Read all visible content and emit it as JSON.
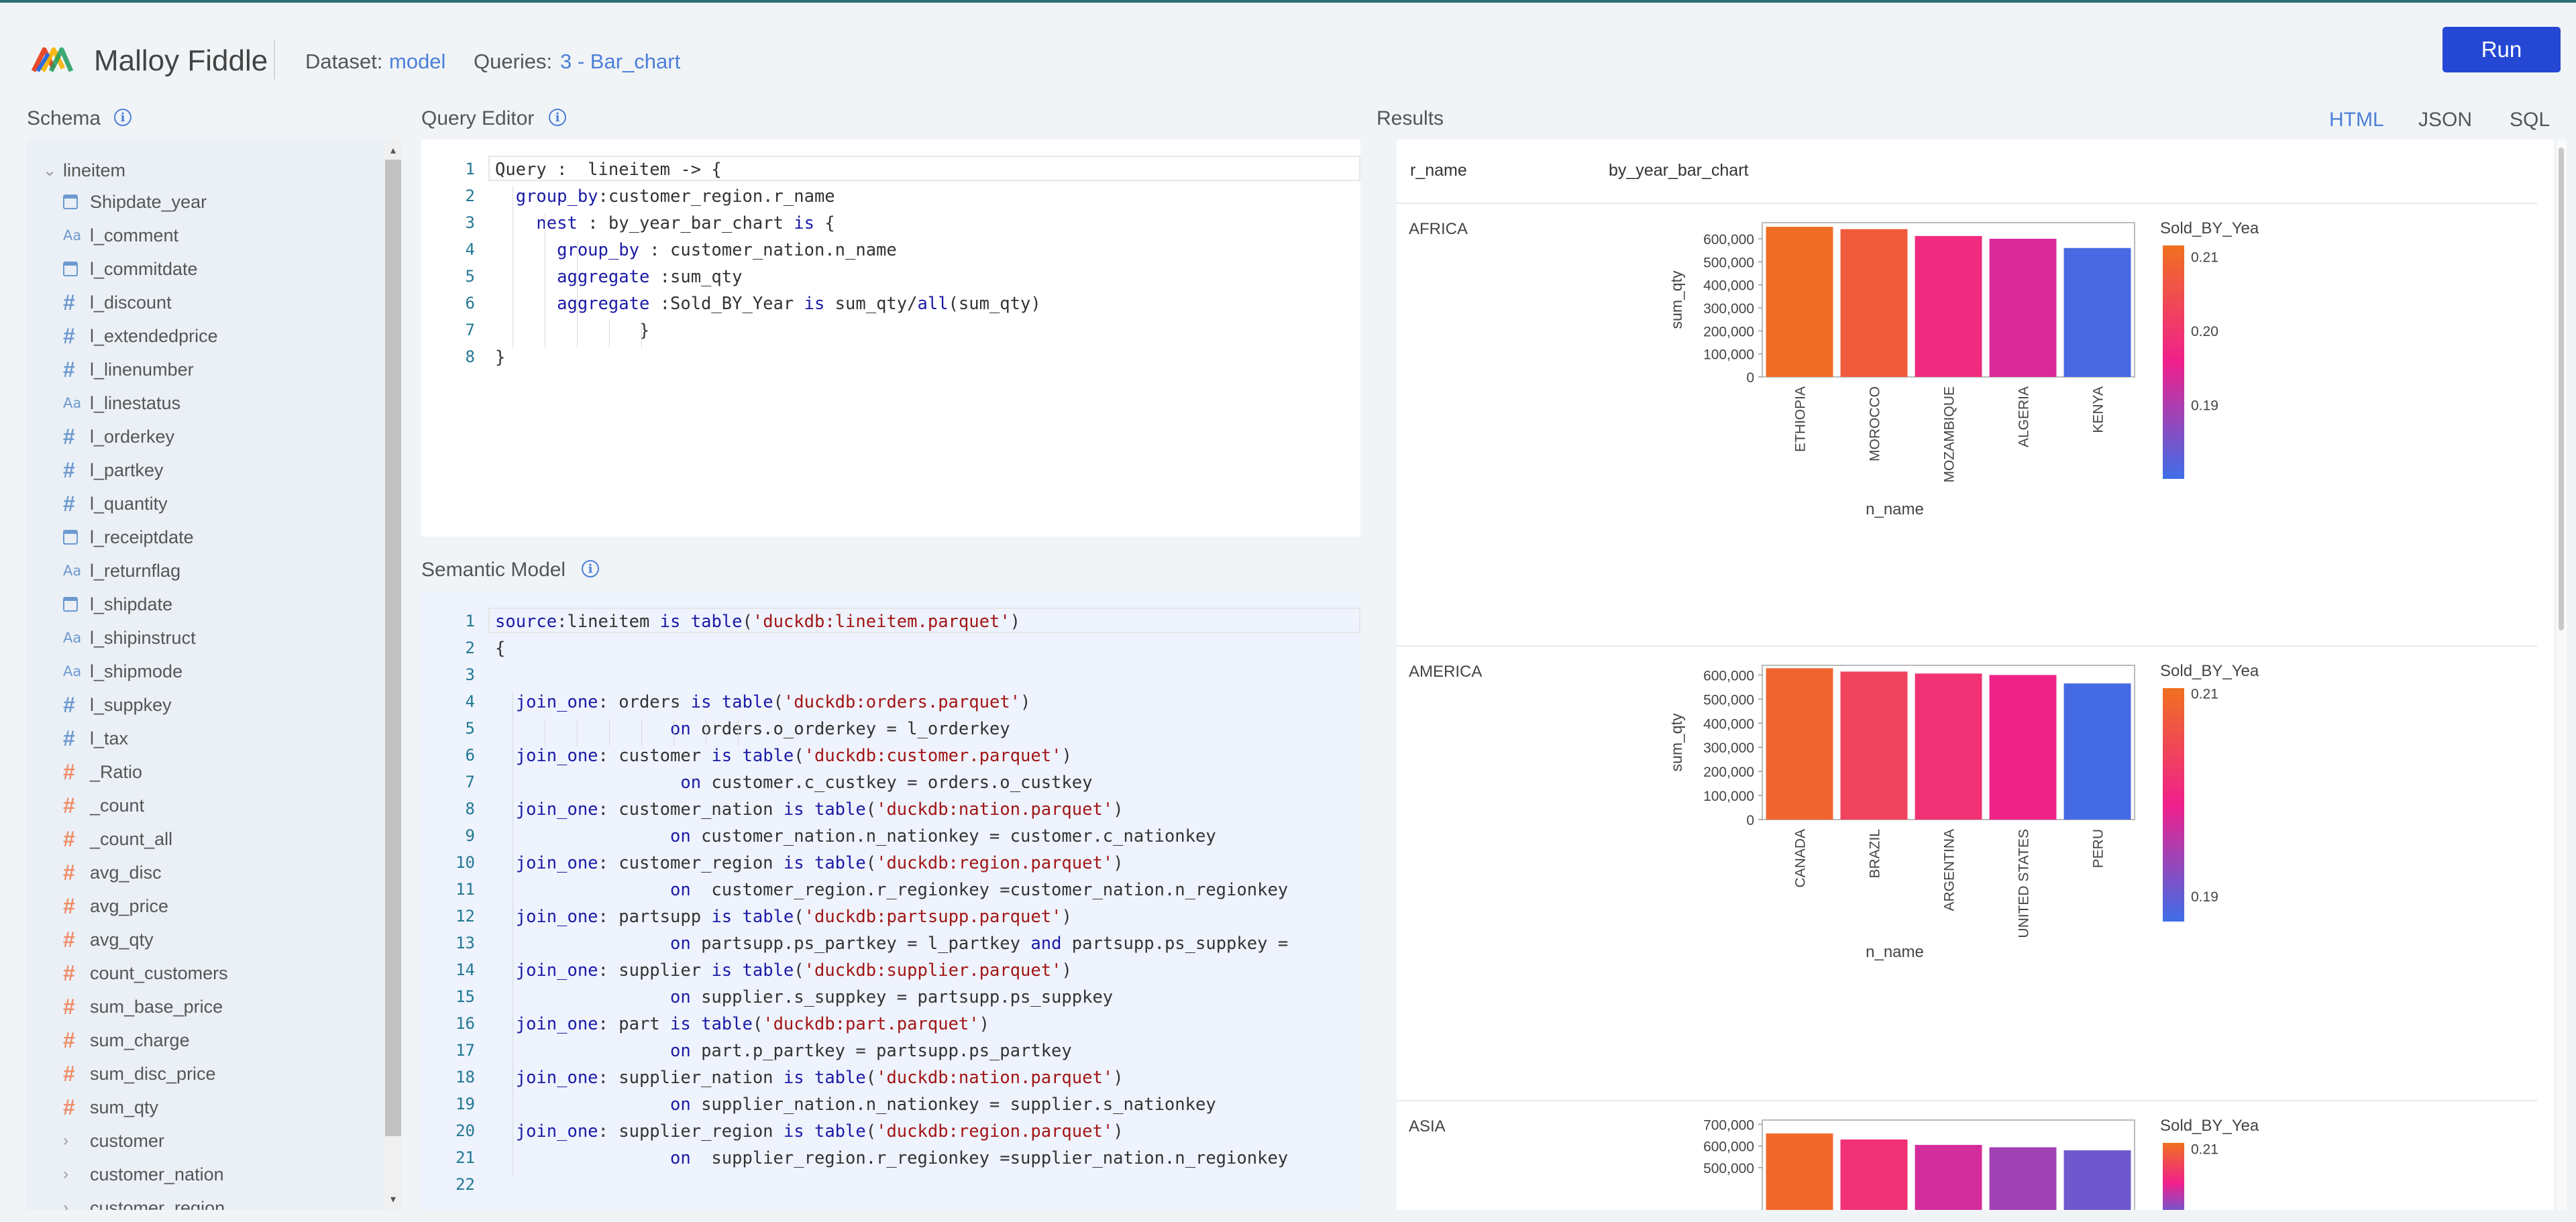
{
  "header": {
    "app_title": "Malloy Fiddle",
    "dataset_label": "Dataset:",
    "dataset_value": "model",
    "queries_label": "Queries:",
    "queries_value": "3 - Bar_chart",
    "run_label": "Run"
  },
  "schema": {
    "title": "Schema",
    "root": "lineitem",
    "fields": [
      {
        "name": "Shipdate_year",
        "type": "date"
      },
      {
        "name": "l_comment",
        "type": "string"
      },
      {
        "name": "l_commitdate",
        "type": "date"
      },
      {
        "name": "l_discount",
        "type": "number"
      },
      {
        "name": "l_extendedprice",
        "type": "number"
      },
      {
        "name": "l_linenumber",
        "type": "number"
      },
      {
        "name": "l_linestatus",
        "type": "string"
      },
      {
        "name": "l_orderkey",
        "type": "number"
      },
      {
        "name": "l_partkey",
        "type": "number"
      },
      {
        "name": "l_quantity",
        "type": "number"
      },
      {
        "name": "l_receiptdate",
        "type": "date"
      },
      {
        "name": "l_returnflag",
        "type": "string"
      },
      {
        "name": "l_shipdate",
        "type": "date"
      },
      {
        "name": "l_shipinstruct",
        "type": "string"
      },
      {
        "name": "l_shipmode",
        "type": "string"
      },
      {
        "name": "l_suppkey",
        "type": "number"
      },
      {
        "name": "l_tax",
        "type": "number"
      },
      {
        "name": "_Ratio",
        "type": "aggregate"
      },
      {
        "name": "_count",
        "type": "aggregate"
      },
      {
        "name": "_count_all",
        "type": "aggregate"
      },
      {
        "name": "avg_disc",
        "type": "aggregate"
      },
      {
        "name": "avg_price",
        "type": "aggregate"
      },
      {
        "name": "avg_qty",
        "type": "aggregate"
      },
      {
        "name": "count_customers",
        "type": "aggregate"
      },
      {
        "name": "sum_base_price",
        "type": "aggregate"
      },
      {
        "name": "sum_charge",
        "type": "aggregate"
      },
      {
        "name": "sum_disc_price",
        "type": "aggregate"
      },
      {
        "name": "sum_qty",
        "type": "aggregate"
      },
      {
        "name": "customer",
        "type": "join"
      },
      {
        "name": "customer_nation",
        "type": "join"
      },
      {
        "name": "customer_region",
        "type": "join"
      }
    ]
  },
  "query_editor": {
    "title": "Query Editor",
    "lines": [
      [
        {
          "t": "Query :  lineitem -> {"
        }
      ],
      [
        {
          "t": "  "
        },
        {
          "t": "group_by",
          "k": 1
        },
        {
          "t": ":customer_region.r_name"
        }
      ],
      [
        {
          "t": "    "
        },
        {
          "t": "nest",
          "k": 1
        },
        {
          "t": " : by_year_bar_chart "
        },
        {
          "t": "is",
          "k": 1
        },
        {
          "t": " {"
        }
      ],
      [
        {
          "t": "      "
        },
        {
          "t": "group_by",
          "k": 1
        },
        {
          "t": " : customer_nation.n_name"
        }
      ],
      [
        {
          "t": "      "
        },
        {
          "t": "aggregate",
          "k": 1
        },
        {
          "t": " :sum_qty"
        }
      ],
      [
        {
          "t": "      "
        },
        {
          "t": "aggregate",
          "k": 1
        },
        {
          "t": " :Sold_BY_Year "
        },
        {
          "t": "is",
          "k": 1
        },
        {
          "t": " sum_qty/"
        },
        {
          "t": "all",
          "k": 1
        },
        {
          "t": "(sum_qty)"
        }
      ],
      [
        {
          "t": "              }"
        }
      ],
      [
        {
          "t": "}"
        }
      ]
    ]
  },
  "semantic_model": {
    "title": "Semantic Model",
    "lines": [
      [
        {
          "t": "source",
          "k": 1
        },
        {
          "t": ":lineitem "
        },
        {
          "t": "is",
          "k": 1
        },
        {
          "t": " "
        },
        {
          "t": "table",
          "k": 1
        },
        {
          "t": "("
        },
        {
          "t": "'duckdb:lineitem.parquet'",
          "s": 1
        },
        {
          "t": ")"
        }
      ],
      [
        {
          "t": "{"
        }
      ],
      [
        {
          "t": ""
        }
      ],
      [
        {
          "t": "  "
        },
        {
          "t": "join_one",
          "k": 1
        },
        {
          "t": ": orders "
        },
        {
          "t": "is",
          "k": 1
        },
        {
          "t": " "
        },
        {
          "t": "table",
          "k": 1
        },
        {
          "t": "("
        },
        {
          "t": "'duckdb:orders.parquet'",
          "s": 1
        },
        {
          "t": ")"
        }
      ],
      [
        {
          "t": "                 "
        },
        {
          "t": "on",
          "k": 1
        },
        {
          "t": " orders.o_orderkey = l_orderkey"
        }
      ],
      [
        {
          "t": "  "
        },
        {
          "t": "join_one",
          "k": 1
        },
        {
          "t": ": customer "
        },
        {
          "t": "is",
          "k": 1
        },
        {
          "t": " "
        },
        {
          "t": "table",
          "k": 1
        },
        {
          "t": "("
        },
        {
          "t": "'duckdb:customer.parquet'",
          "s": 1
        },
        {
          "t": ")"
        }
      ],
      [
        {
          "t": "                  "
        },
        {
          "t": "on",
          "k": 1
        },
        {
          "t": " customer.c_custkey = orders.o_custkey"
        }
      ],
      [
        {
          "t": "  "
        },
        {
          "t": "join_one",
          "k": 1
        },
        {
          "t": ": customer_nation "
        },
        {
          "t": "is",
          "k": 1
        },
        {
          "t": " "
        },
        {
          "t": "table",
          "k": 1
        },
        {
          "t": "("
        },
        {
          "t": "'duckdb:nation.parquet'",
          "s": 1
        },
        {
          "t": ")"
        }
      ],
      [
        {
          "t": "                 "
        },
        {
          "t": "on",
          "k": 1
        },
        {
          "t": " customer_nation.n_nationkey = customer.c_nationkey"
        }
      ],
      [
        {
          "t": "  "
        },
        {
          "t": "join_one",
          "k": 1
        },
        {
          "t": ": customer_region "
        },
        {
          "t": "is",
          "k": 1
        },
        {
          "t": " "
        },
        {
          "t": "table",
          "k": 1
        },
        {
          "t": "("
        },
        {
          "t": "'duckdb:region.parquet'",
          "s": 1
        },
        {
          "t": ")"
        }
      ],
      [
        {
          "t": "                 "
        },
        {
          "t": "on",
          "k": 1
        },
        {
          "t": "  customer_region.r_regionkey =customer_nation.n_regionkey"
        }
      ],
      [
        {
          "t": "  "
        },
        {
          "t": "join_one",
          "k": 1
        },
        {
          "t": ": partsupp "
        },
        {
          "t": "is",
          "k": 1
        },
        {
          "t": " "
        },
        {
          "t": "table",
          "k": 1
        },
        {
          "t": "("
        },
        {
          "t": "'duckdb:partsupp.parquet'",
          "s": 1
        },
        {
          "t": ")"
        }
      ],
      [
        {
          "t": "                 "
        },
        {
          "t": "on",
          "k": 1
        },
        {
          "t": " partsupp.ps_partkey = l_partkey "
        },
        {
          "t": "and",
          "k": 1
        },
        {
          "t": " partsupp.ps_suppkey ="
        }
      ],
      [
        {
          "t": "  "
        },
        {
          "t": "join_one",
          "k": 1
        },
        {
          "t": ": supplier "
        },
        {
          "t": "is",
          "k": 1
        },
        {
          "t": " "
        },
        {
          "t": "table",
          "k": 1
        },
        {
          "t": "("
        },
        {
          "t": "'duckdb:supplier.parquet'",
          "s": 1
        },
        {
          "t": ")"
        }
      ],
      [
        {
          "t": "                 "
        },
        {
          "t": "on",
          "k": 1
        },
        {
          "t": " supplier.s_suppkey = partsupp.ps_suppkey"
        }
      ],
      [
        {
          "t": "  "
        },
        {
          "t": "join_one",
          "k": 1
        },
        {
          "t": ": part "
        },
        {
          "t": "is",
          "k": 1
        },
        {
          "t": " "
        },
        {
          "t": "table",
          "k": 1
        },
        {
          "t": "("
        },
        {
          "t": "'duckdb:part.parquet'",
          "s": 1
        },
        {
          "t": ")"
        }
      ],
      [
        {
          "t": "                 "
        },
        {
          "t": "on",
          "k": 1
        },
        {
          "t": " part.p_partkey = partsupp.ps_partkey"
        }
      ],
      [
        {
          "t": "  "
        },
        {
          "t": "join_one",
          "k": 1
        },
        {
          "t": ": supplier_nation "
        },
        {
          "t": "is",
          "k": 1
        },
        {
          "t": " "
        },
        {
          "t": "table",
          "k": 1
        },
        {
          "t": "("
        },
        {
          "t": "'duckdb:nation.parquet'",
          "s": 1
        },
        {
          "t": ")"
        }
      ],
      [
        {
          "t": "                 "
        },
        {
          "t": "on",
          "k": 1
        },
        {
          "t": " supplier_nation.n_nationkey = supplier.s_nationkey"
        }
      ],
      [
        {
          "t": "  "
        },
        {
          "t": "join_one",
          "k": 1
        },
        {
          "t": ": supplier_region "
        },
        {
          "t": "is",
          "k": 1
        },
        {
          "t": " "
        },
        {
          "t": "table",
          "k": 1
        },
        {
          "t": "("
        },
        {
          "t": "'duckdb:region.parquet'",
          "s": 1
        },
        {
          "t": ")"
        }
      ],
      [
        {
          "t": "                 "
        },
        {
          "t": "on",
          "k": 1
        },
        {
          "t": "  supplier_region.r_regionkey =supplier_nation.n_regionkey"
        }
      ],
      [
        {
          "t": ""
        }
      ]
    ]
  },
  "results": {
    "title": "Results",
    "tabs": [
      "HTML",
      "JSON",
      "SQL"
    ],
    "active_tab": "HTML",
    "col_headers": [
      "r_name",
      "by_year_bar_chart"
    ]
  },
  "colors": {
    "accent": "#2447d4",
    "link": "#4c7fd8",
    "gradient_high": "#f07020",
    "gradient_mid": "#f0208c",
    "gradient_low": "#3d6ee8"
  },
  "chart_data": [
    {
      "type": "bar",
      "region": "AFRICA",
      "categories": [
        "ETHIOPIA",
        "MOROCCO",
        "MOZAMBIQUE",
        "ALGERIA",
        "KENYA"
      ],
      "series": [
        {
          "name": "sum_qty",
          "values": [
            652000,
            642000,
            612000,
            600000,
            560000
          ]
        }
      ],
      "color_values": [
        0.2108,
        0.2075,
        0.1978,
        0.1939,
        0.181
      ],
      "color_legend": {
        "title": "Sold_BY_Yea",
        "ticks": [
          "0.21",
          "0.20",
          "0.19"
        ],
        "tick_values": [
          0.21,
          0.2,
          0.19
        ],
        "range": [
          0.18,
          0.2115
        ]
      },
      "xlabel": "n_name",
      "ylabel": "sum_qty",
      "yticks": [
        "0",
        "100,000",
        "200,000",
        "300,000",
        "400,000",
        "500,000",
        "600,000"
      ],
      "ylim": [
        0,
        670000
      ]
    },
    {
      "type": "bar",
      "region": "AMERICA",
      "categories": [
        "CANADA",
        "BRAZIL",
        "ARGENTINA",
        "UNITED STATES",
        "PERU"
      ],
      "series": [
        {
          "name": "sum_qty",
          "values": [
            628000,
            614000,
            606000,
            600000,
            565000
          ]
        }
      ],
      "color_values": [
        0.2089,
        0.204,
        0.2016,
        0.1994,
        0.188
      ],
      "color_legend": {
        "title": "Sold_BY_Yea",
        "ticks": [
          "0.21",
          "0.19"
        ],
        "tick_values": [
          0.21,
          0.19
        ],
        "range": [
          0.1875,
          0.2105
        ]
      },
      "xlabel": "n_name",
      "ylabel": "sum_qty",
      "yticks": [
        "0",
        "100,000",
        "200,000",
        "300,000",
        "400,000",
        "500,000",
        "600,000"
      ],
      "ylim": [
        0,
        640000
      ]
    },
    {
      "type": "bar",
      "region": "ASIA",
      "categories": [
        "",
        "",
        "",
        "",
        ""
      ],
      "series": [
        {
          "name": "sum_qty",
          "values": [
            658000,
            630000,
            605000,
            594000,
            580000
          ]
        }
      ],
      "color_values": [
        0.2105,
        0.203,
        0.199,
        0.196,
        0.193
      ],
      "color_legend": {
        "title": "Sold_BY_Yea",
        "ticks": [
          "0.21"
        ],
        "tick_values": [
          0.21
        ],
        "range": [
          0.19,
          0.2115
        ]
      },
      "xlabel": "",
      "ylabel": "",
      "yticks": [
        "500,000",
        "600,000",
        "700,000"
      ],
      "ylim": [
        0,
        720000
      ]
    }
  ]
}
